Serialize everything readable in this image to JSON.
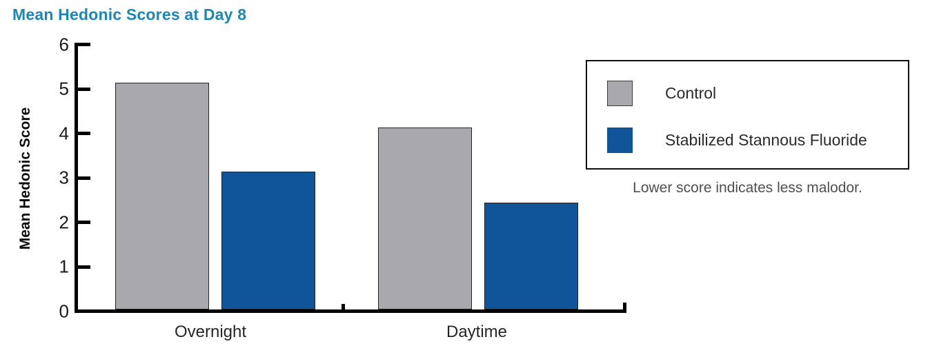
{
  "chart_data": {
    "type": "bar",
    "title": "Mean Hedonic Scores at Day 8",
    "title_color": "#1b87b9",
    "categories": [
      "Overnight",
      "Daytime"
    ],
    "series": [
      {
        "name": "Control",
        "color": "#a9a9ad",
        "values": [
          5.1,
          4.1
        ]
      },
      {
        "name": "Stabilized Stannous Fluoride",
        "color": "#10549a",
        "values": [
          3.1,
          2.4
        ]
      }
    ],
    "xlabel": "",
    "ylabel": "Mean Hedonic Score",
    "ylim": [
      0,
      6
    ],
    "yticks": [
      0,
      1,
      2,
      3,
      4,
      5,
      6
    ],
    "grid": false,
    "legend_position": "right",
    "note": "Lower score indicates less malodor.",
    "axis_color": "#000000",
    "bar_border_color": "#222222"
  }
}
